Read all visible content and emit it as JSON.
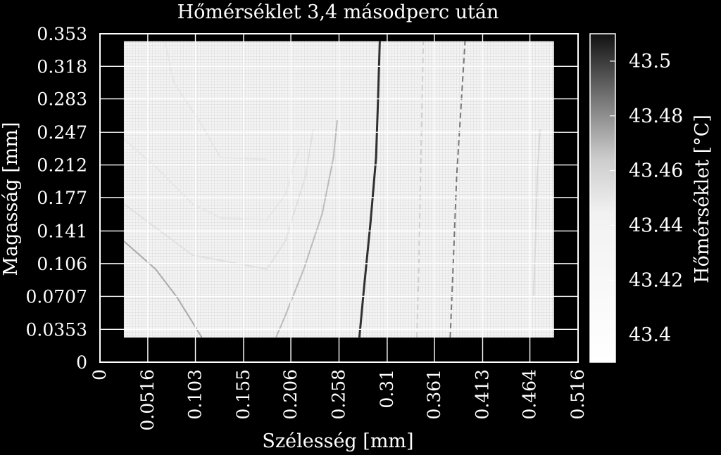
{
  "chart_data": {
    "type": "heatmap",
    "title": "Hőmérséklet 3,4 másodperc után",
    "xlabel": "Szélesség [mm]",
    "ylabel": "Magasság [mm]",
    "xlim": [
      0,
      0.516
    ],
    "ylim": [
      0,
      0.353
    ],
    "x_ticks": [
      "0",
      "0.0516",
      "0.103",
      "0.155",
      "0.206",
      "0.258",
      "0.31",
      "0.361",
      "0.413",
      "0.464",
      "0.516"
    ],
    "y_ticks": [
      "0",
      "0.0353",
      "0.0707",
      "0.106",
      "0.141",
      "0.177",
      "0.212",
      "0.247",
      "0.283",
      "0.318",
      "0.353"
    ],
    "grid": true,
    "data_extent": {
      "x": [
        0.0258,
        0.49
      ],
      "y": [
        0.0265,
        0.345
      ]
    },
    "colorbar": {
      "label": "Hőmérséklet [°C]",
      "range": [
        43.39,
        43.51
      ],
      "ticks": [
        "43.5",
        "43.48",
        "43.46",
        "43.44",
        "43.42",
        "43.4"
      ],
      "colors": [
        "#ffffff",
        "#000000"
      ]
    },
    "contours": [
      {
        "level": 43.44,
        "style": "solid",
        "color": "#303030",
        "points": [
          [
            0.28,
            0.0265
          ],
          [
            0.285,
            0.08
          ],
          [
            0.292,
            0.15
          ],
          [
            0.298,
            0.22
          ],
          [
            0.3,
            0.28
          ],
          [
            0.302,
            0.345
          ]
        ]
      },
      {
        "level": 43.48,
        "style": "dashed",
        "color": "#777777",
        "points": [
          [
            0.378,
            0.0265
          ],
          [
            0.381,
            0.1
          ],
          [
            0.385,
            0.2
          ],
          [
            0.39,
            0.28
          ],
          [
            0.394,
            0.345
          ]
        ]
      },
      {
        "level": 43.42,
        "style": "solid",
        "color": "#aaaaaa",
        "points": [
          [
            0.0258,
            0.13
          ],
          [
            0.06,
            0.1
          ],
          [
            0.083,
            0.07
          ],
          [
            0.11,
            0.0265
          ]
        ]
      },
      {
        "level": 43.42,
        "style": "solid",
        "color": "#bbbbbb",
        "points": [
          [
            0.19,
            0.0265
          ],
          [
            0.2,
            0.05
          ],
          [
            0.22,
            0.1
          ],
          [
            0.24,
            0.16
          ],
          [
            0.252,
            0.22
          ],
          [
            0.256,
            0.26
          ]
        ]
      },
      {
        "level": 43.43,
        "style": "solid",
        "color": "#e0e0e0",
        "points": [
          [
            0.0258,
            0.17
          ],
          [
            0.1,
            0.115
          ],
          [
            0.18,
            0.1
          ],
          [
            0.2,
            0.13
          ],
          [
            0.222,
            0.2
          ],
          [
            0.23,
            0.25
          ]
        ]
      },
      {
        "level": 43.43,
        "style": "solid",
        "color": "#e6e6e6",
        "points": [
          [
            0.0258,
            0.24
          ],
          [
            0.06,
            0.21
          ],
          [
            0.1,
            0.17
          ],
          [
            0.13,
            0.155
          ],
          [
            0.18,
            0.153
          ],
          [
            0.2,
            0.18
          ],
          [
            0.215,
            0.23
          ]
        ]
      },
      {
        "level": 43.43,
        "style": "solid",
        "color": "#e6e6e6",
        "points": [
          [
            0.07,
            0.345
          ],
          [
            0.08,
            0.3
          ],
          [
            0.11,
            0.255
          ],
          [
            0.13,
            0.22
          ],
          [
            0.18,
            0.218
          ]
        ]
      },
      {
        "level": 43.47,
        "style": "dashed",
        "color": "#cfcfcf",
        "points": [
          [
            0.342,
            0.0265
          ],
          [
            0.344,
            0.1
          ],
          [
            0.346,
            0.2
          ],
          [
            0.349,
            0.345
          ]
        ]
      },
      {
        "level": 43.48,
        "style": "solid",
        "color": "#d8d8d8",
        "points": [
          [
            0.468,
            0.07
          ],
          [
            0.47,
            0.13
          ],
          [
            0.472,
            0.2
          ],
          [
            0.475,
            0.25
          ]
        ]
      }
    ]
  }
}
